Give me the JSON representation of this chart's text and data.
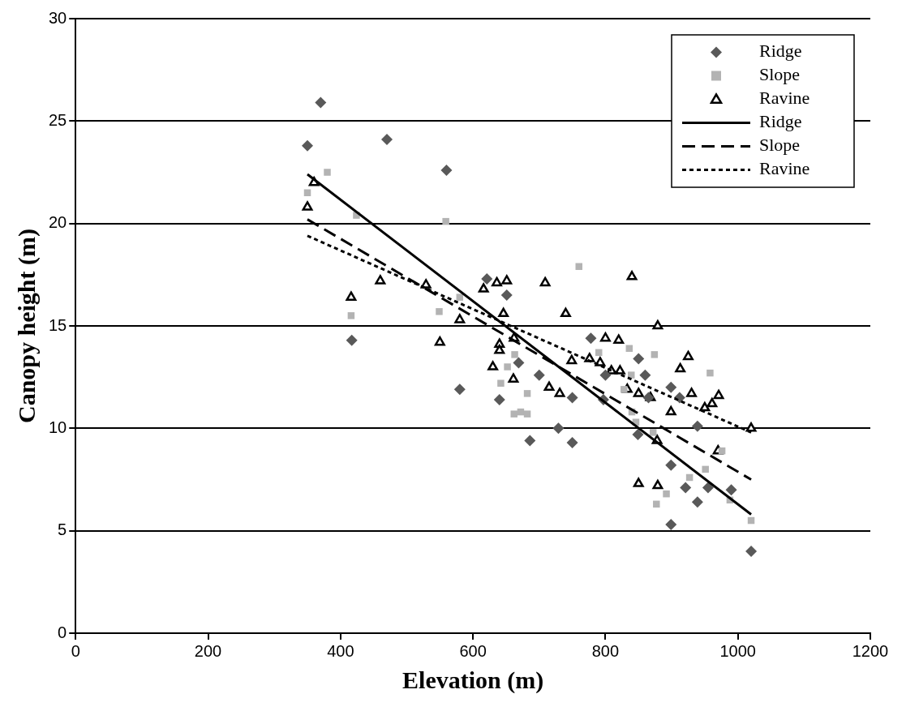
{
  "chart_data": {
    "type": "scatter",
    "xlabel": "Elevation (m)",
    "ylabel": "Canopy height (m)",
    "xlim": [
      0,
      1200
    ],
    "xticks": [
      0,
      200,
      400,
      600,
      800,
      1000,
      1200
    ],
    "ylim": [
      0,
      30
    ],
    "yticks": [
      0,
      5,
      10,
      15,
      20,
      25,
      30
    ],
    "grid": "y",
    "legend": "top right",
    "series": [
      {
        "name": "Ridge",
        "marker": "diamond",
        "color": "#595959",
        "x": [
          350,
          370,
          470,
          560,
          417,
          580,
          621,
          651,
          640,
          669,
          686,
          700,
          729,
          750,
          750,
          778,
          800,
          797,
          850,
          860,
          849,
          865,
          899,
          912,
          939,
          899,
          921,
          899,
          939,
          955,
          990,
          1020
        ],
        "values": [
          23.8,
          25.9,
          24.1,
          22.6,
          14.3,
          11.9,
          17.3,
          16.5,
          11.4,
          13.2,
          9.4,
          12.6,
          10.0,
          9.3,
          11.5,
          14.4,
          12.6,
          11.4,
          13.4,
          12.6,
          9.7,
          11.5,
          12.0,
          11.5,
          10.1,
          8.2,
          7.1,
          5.3,
          6.4,
          7.1,
          7.0,
          4.0
        ]
      },
      {
        "name": "Slope",
        "marker": "square",
        "color": "#b3b3b3",
        "x": [
          350,
          380,
          424,
          559,
          416,
          549,
          580,
          642,
          652,
          662,
          672,
          682,
          682,
          663,
          760,
          790,
          836,
          839,
          874,
          840,
          846,
          828,
          877,
          892,
          958,
          927,
          951,
          976,
          988,
          1020,
          872
        ],
        "values": [
          21.5,
          22.5,
          20.4,
          20.1,
          15.5,
          15.7,
          16.4,
          12.2,
          13.0,
          10.7,
          10.8,
          10.7,
          11.7,
          13.6,
          17.9,
          13.7,
          13.9,
          12.6,
          13.6,
          10.8,
          10.3,
          11.9,
          6.3,
          6.8,
          12.7,
          7.6,
          8.0,
          8.9,
          6.5,
          5.5,
          9.8
        ]
      },
      {
        "name": "Ravine",
        "marker": "triangle",
        "color": "#000000",
        "x": [
          350,
          360,
          416,
          460,
          529,
          550,
          580,
          616,
          630,
          636,
          651,
          640,
          640,
          646,
          661,
          662,
          709,
          740,
          715,
          731,
          749,
          776,
          792,
          800,
          820,
          809,
          822,
          833,
          840,
          850,
          868,
          879,
          878,
          850,
          879,
          899,
          913,
          925,
          930,
          950,
          961,
          971,
          970,
          1020
        ],
        "values": [
          20.8,
          22.0,
          16.4,
          17.2,
          17.0,
          14.2,
          15.3,
          16.8,
          13.0,
          17.1,
          17.2,
          14.1,
          13.8,
          15.6,
          12.4,
          14.4,
          17.1,
          15.6,
          12.0,
          11.7,
          13.3,
          13.4,
          13.2,
          14.4,
          14.3,
          12.8,
          12.8,
          11.9,
          17.4,
          11.7,
          11.5,
          15.0,
          9.4,
          7.3,
          7.2,
          10.8,
          12.9,
          13.5,
          11.7,
          11.0,
          11.2,
          11.6,
          8.9,
          10.0
        ]
      },
      {
        "name": "Ridge",
        "type": "line",
        "line_style": "solid",
        "color": "#000000",
        "x": [
          350,
          1020
        ],
        "values": [
          22.4,
          5.8
        ]
      },
      {
        "name": "Slope",
        "type": "line",
        "line_style": "dashed",
        "color": "#000000",
        "x": [
          350,
          1020
        ],
        "values": [
          20.2,
          7.5
        ]
      },
      {
        "name": "Ravine",
        "type": "line",
        "line_style": "dotted",
        "color": "#000000",
        "x": [
          350,
          1020
        ],
        "values": [
          19.4,
          9.8
        ]
      }
    ]
  }
}
